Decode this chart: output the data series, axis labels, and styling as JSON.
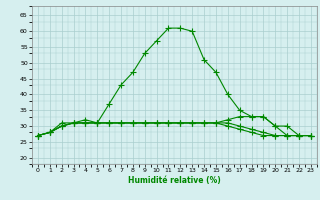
{
  "x": [
    0,
    1,
    2,
    3,
    4,
    5,
    6,
    7,
    8,
    9,
    10,
    11,
    12,
    13,
    14,
    15,
    16,
    17,
    18,
    19,
    20,
    21,
    22,
    23
  ],
  "line1": [
    27,
    28,
    31,
    31,
    32,
    31,
    37,
    43,
    47,
    53,
    57,
    61,
    61,
    60,
    51,
    47,
    40,
    35,
    33,
    33,
    30,
    27,
    27,
    27
  ],
  "line2": [
    27,
    28,
    30,
    31,
    31,
    31,
    31,
    31,
    31,
    31,
    31,
    31,
    31,
    31,
    31,
    31,
    32,
    33,
    33,
    33,
    30,
    30,
    27,
    27
  ],
  "line3": [
    27,
    28,
    30,
    31,
    31,
    31,
    31,
    31,
    31,
    31,
    31,
    31,
    31,
    31,
    31,
    31,
    31,
    30,
    29,
    28,
    27,
    27,
    27,
    27
  ],
  "line4": [
    27,
    28,
    30,
    31,
    31,
    31,
    31,
    31,
    31,
    31,
    31,
    31,
    31,
    31,
    31,
    31,
    30,
    29,
    28,
    27,
    27,
    27,
    27,
    27
  ],
  "line_color": "#008800",
  "bg_color": "#d6efef",
  "grid_color": "#aacece",
  "xlabel": "Humidité relative (%)",
  "xlim": [
    -0.5,
    23.5
  ],
  "ylim": [
    18,
    68
  ],
  "yticks": [
    20,
    25,
    30,
    35,
    40,
    45,
    50,
    55,
    60,
    65
  ],
  "xticks": [
    0,
    1,
    2,
    3,
    4,
    5,
    6,
    7,
    8,
    9,
    10,
    11,
    12,
    13,
    14,
    15,
    16,
    17,
    18,
    19,
    20,
    21,
    22,
    23
  ]
}
